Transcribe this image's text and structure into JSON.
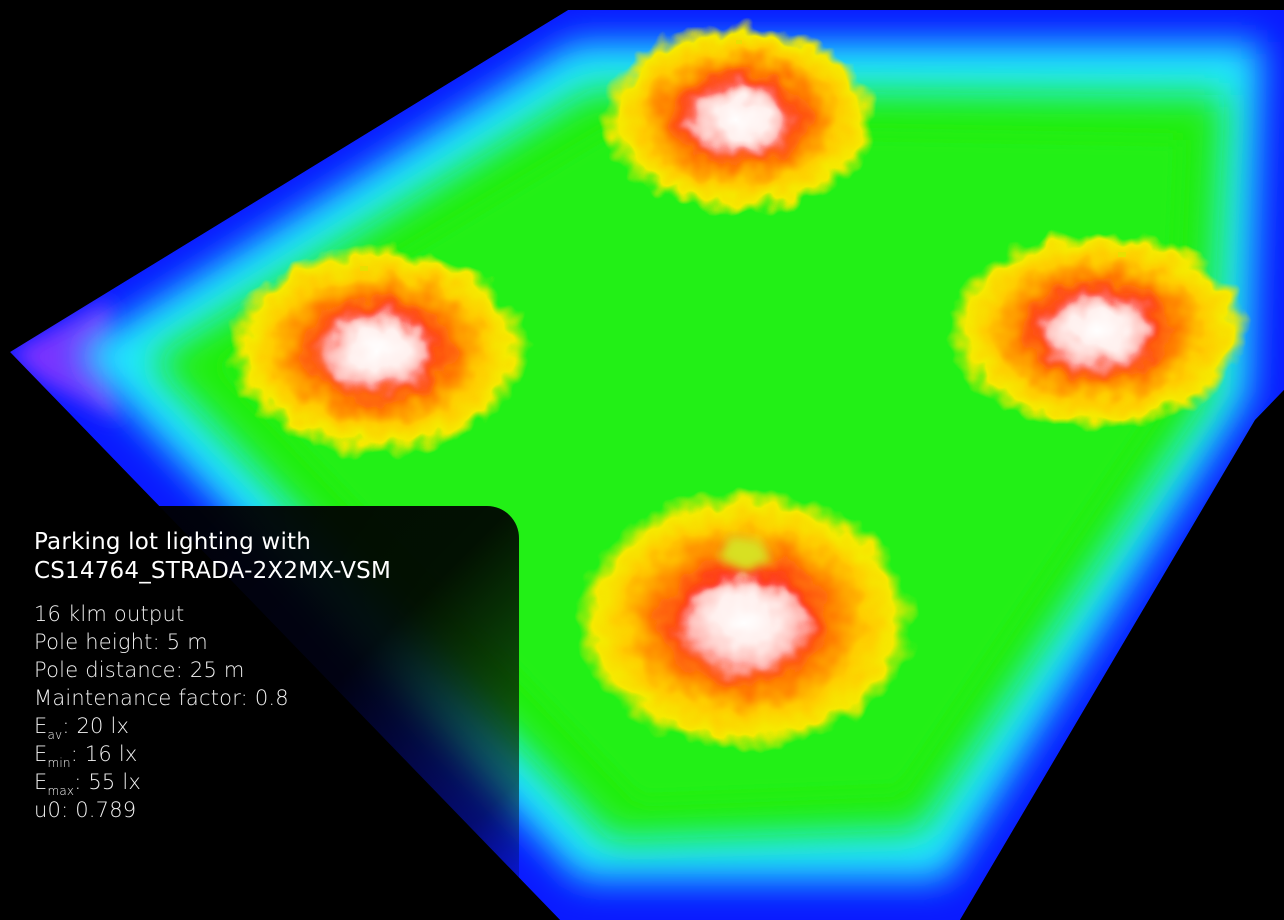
{
  "image": {
    "kind": "false-colour illuminance render of a square parking lot with four light poles",
    "colors": {
      "background": "#000000",
      "edge": "#0a1aff",
      "edge_cyan": "#22e8ff",
      "field": "#22ee10",
      "halo_yellow": "#f5e800",
      "halo_orange": "#ffaa00",
      "hot_red": "#ff2a1a",
      "peak_white": "#ffffff"
    }
  },
  "panel": {
    "title_line_1": "Parking lot lighting with",
    "title_line_2": "CS14764_STRADA-2X2MX-VSM",
    "output": "16 klm output",
    "pole_height": "Pole height: 5 m",
    "pole_distance": "Pole distance: 25 m",
    "maintenance": "Maintenance factor: 0.8",
    "e_av": {
      "symbol": "E",
      "sub": "av",
      "value": ": 20 lx"
    },
    "e_min": {
      "symbol": "E",
      "sub": "min",
      "value": ": 16 lx"
    },
    "e_max": {
      "symbol": "E",
      "sub": "max",
      "value": ": 55 lx"
    },
    "uniformity": "u0: 0.789"
  }
}
